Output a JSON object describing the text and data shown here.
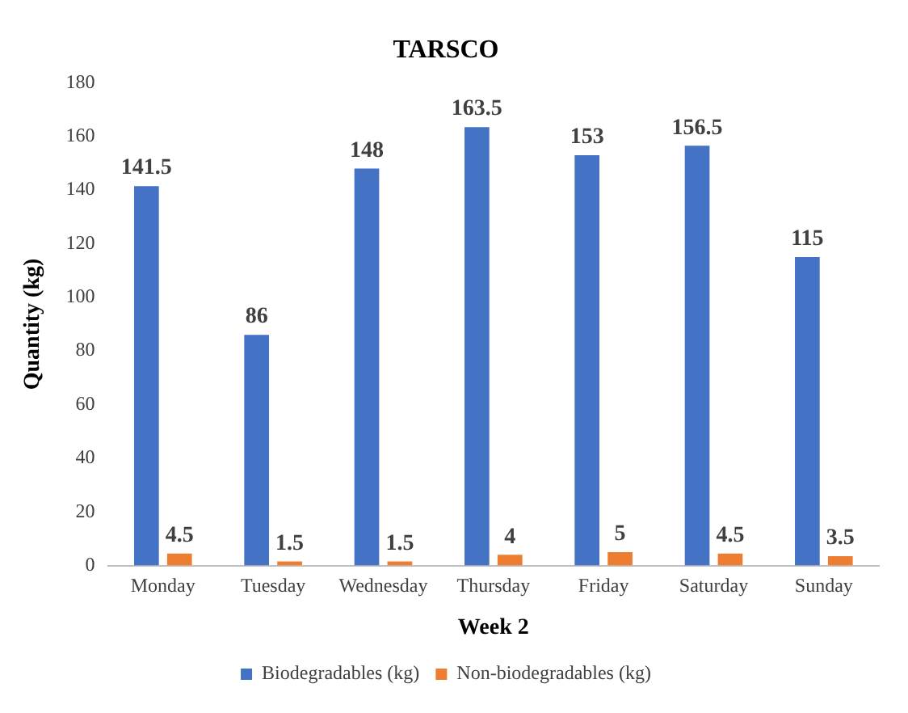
{
  "chart_data": {
    "type": "bar",
    "title": "TARSCO",
    "xlabel": "Week 2",
    "ylabel": "Quantity (kg)",
    "categories": [
      "Monday",
      "Tuesday",
      "Wednesday",
      "Thursday",
      "Friday",
      "Saturday",
      "Sunday"
    ],
    "series": [
      {
        "name": "Biodegradables (kg)",
        "color": "#4472c4",
        "values": [
          141.5,
          86,
          148,
          163.5,
          153,
          156.5,
          115
        ]
      },
      {
        "name": "Non-biodegradables (kg)",
        "color": "#ed7d31",
        "values": [
          4.5,
          1.5,
          1.5,
          4,
          5,
          4.5,
          3.5
        ]
      }
    ],
    "ylim": [
      0,
      180
    ],
    "yticks": [
      0,
      20,
      40,
      60,
      80,
      100,
      120,
      140,
      160,
      180
    ],
    "grid": false,
    "legend": "bottom",
    "data_labels": true
  }
}
